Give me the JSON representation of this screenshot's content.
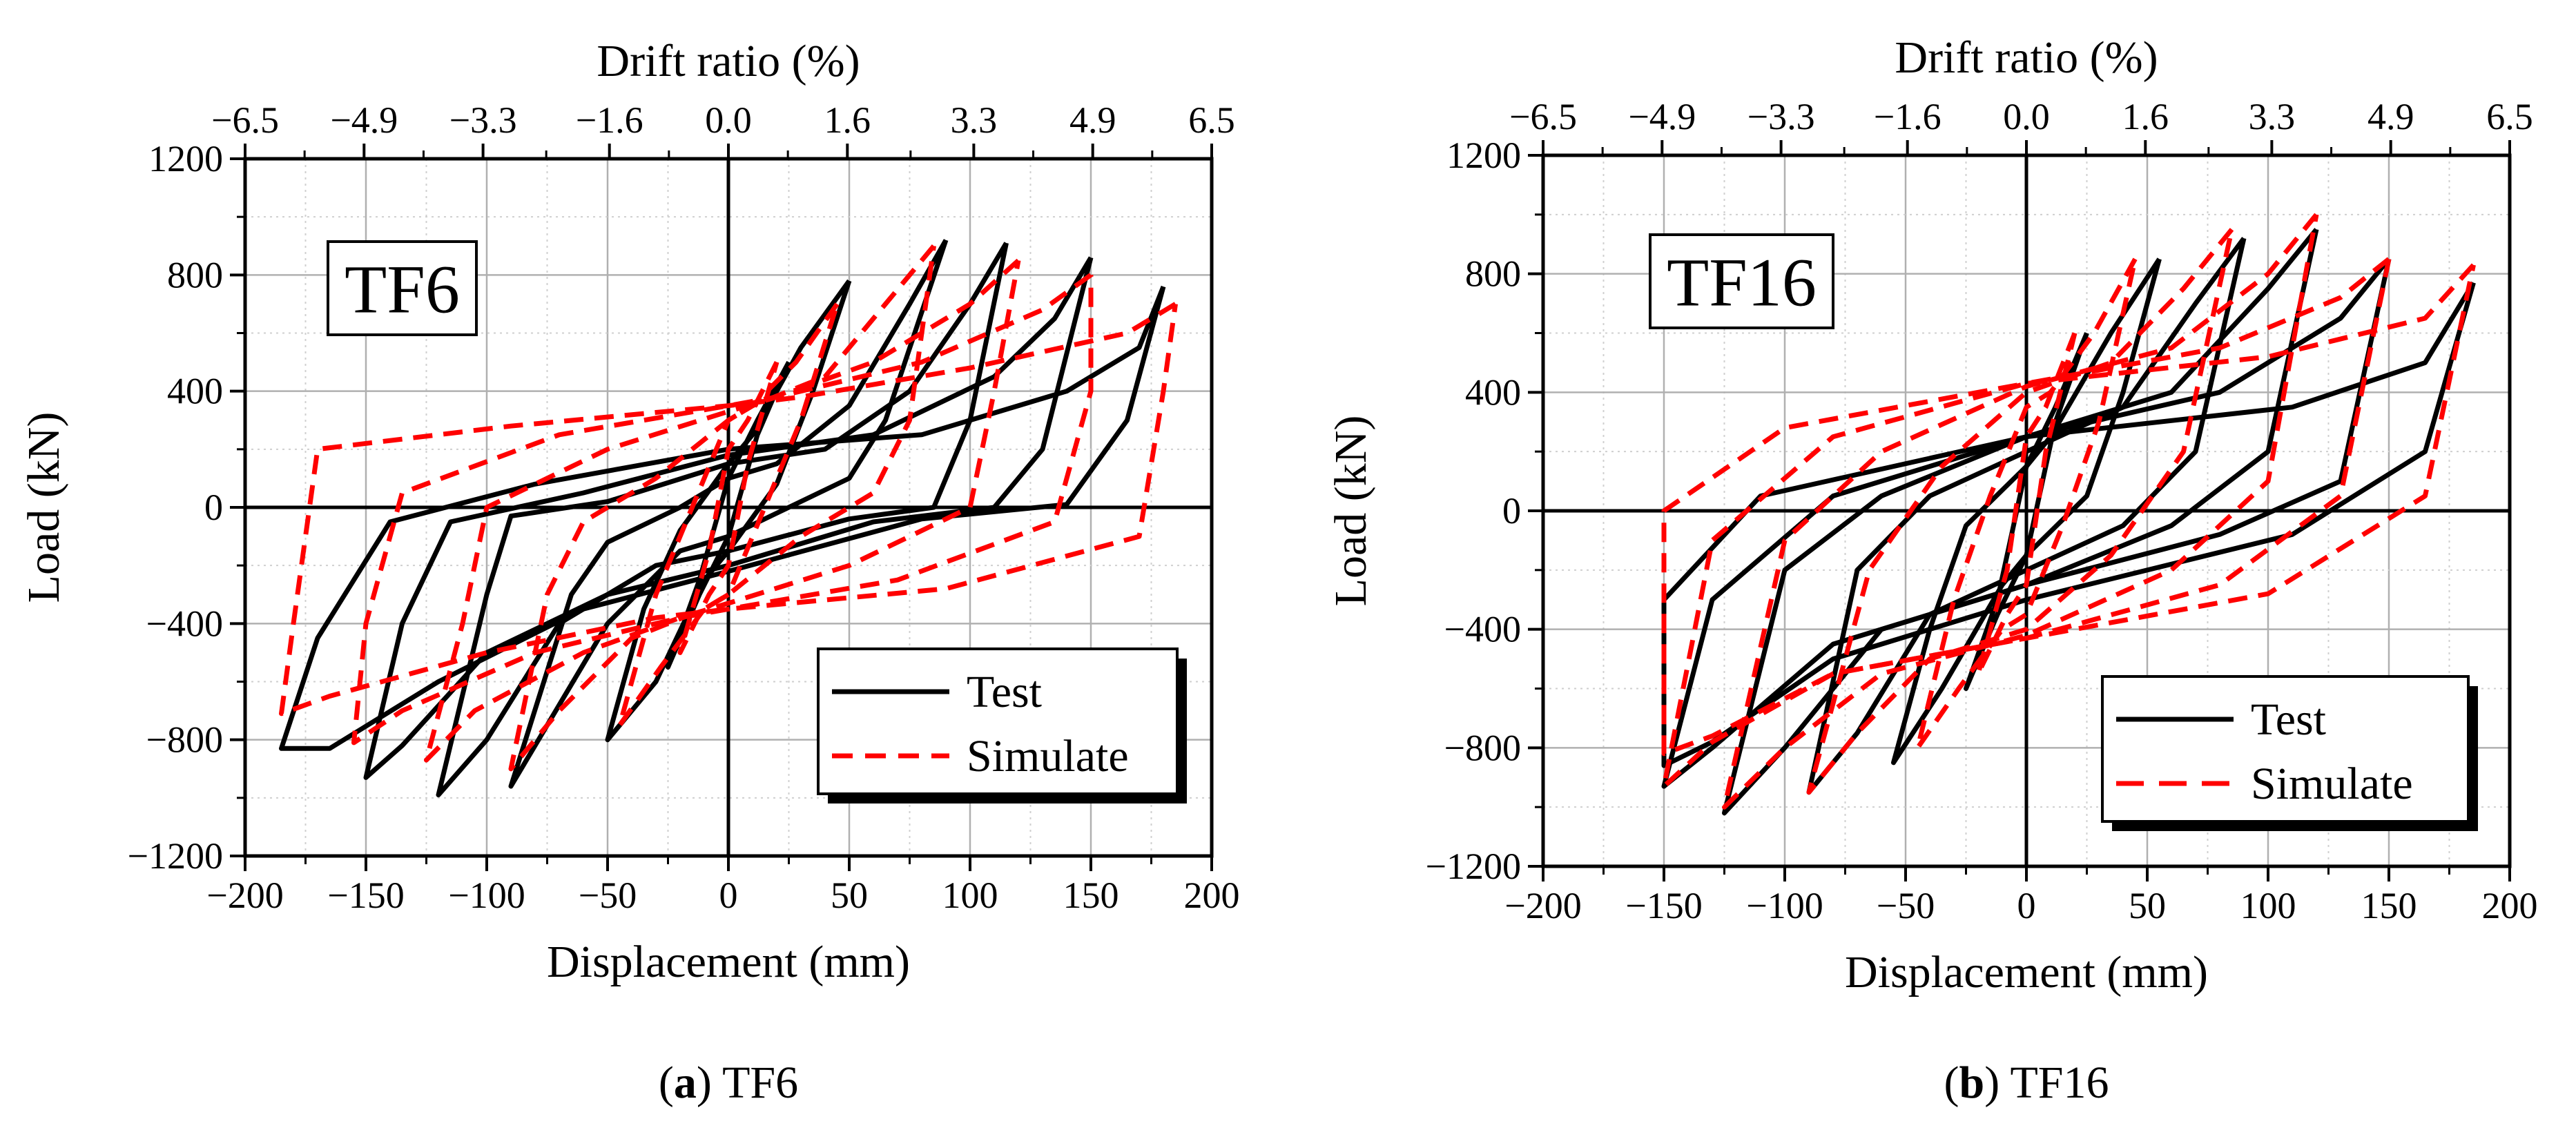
{
  "chart_data": [
    {
      "type": "line",
      "panel_letter": "a",
      "caption_text": " TF6",
      "specimen_label": "TF6",
      "xlabel": "Displacement (mm)",
      "ylabel": "Load (kN)",
      "top_xlabel": "Drift ratio (%)",
      "xlim": [
        -200,
        200
      ],
      "ylim": [
        -1200,
        1200
      ],
      "x_ticks": [
        -200,
        -150,
        -100,
        -50,
        0,
        50,
        100,
        150,
        200
      ],
      "x_tick_labels": [
        "−200",
        "−150",
        "−100",
        "−50",
        "0",
        "50",
        "100",
        "150",
        "200"
      ],
      "y_ticks": [
        -1200,
        -800,
        -400,
        0,
        400,
        800,
        1200
      ],
      "y_tick_labels": [
        "−1200",
        "−800",
        "−400",
        "0",
        "400",
        "800",
        "1200"
      ],
      "top_ticks": [
        -6.5,
        -4.9,
        -3.3,
        -1.6,
        0.0,
        1.6,
        3.3,
        4.9,
        6.5
      ],
      "top_tick_labels": [
        "−6.5",
        "−4.9",
        "−3.3",
        "−1.6",
        "0.0",
        "1.6",
        "3.3",
        "4.9",
        "6.5"
      ],
      "grid": true,
      "legend_position": "bottom-right",
      "series": [
        {
          "name": "Test",
          "color": "#000000",
          "dash": "solid",
          "cycles": [
            [
              25,
              500,
              12,
              300,
              0,
              100,
              -12,
              -250,
              -25,
              -550,
              -12,
              -300,
              0,
              -100,
              12,
              250,
              25,
              500
            ],
            [
              50,
              780,
              30,
              550,
              10,
              250,
              0,
              150,
              -20,
              -80,
              -35,
              -350,
              -50,
              -800,
              -30,
              -600,
              -10,
              -250,
              0,
              -150,
              20,
              80,
              35,
              400,
              50,
              780
            ],
            [
              90,
              920,
              75,
              700,
              50,
              350,
              20,
              150,
              0,
              100,
              -20,
              0,
              -50,
              -120,
              -65,
              -300,
              -90,
              -960,
              -75,
              -750,
              -50,
              -400,
              -20,
              -150,
              0,
              -100,
              20,
              -20,
              50,
              100,
              65,
              300,
              90,
              920
            ],
            [
              115,
              910,
              100,
              700,
              75,
              400,
              40,
              200,
              0,
              150,
              -50,
              20,
              -90,
              -30,
              -100,
              -300,
              -120,
              -990,
              -100,
              -800,
              -70,
              -400,
              -30,
              -200,
              0,
              -150,
              50,
              -40,
              85,
              0,
              100,
              300,
              115,
              910
            ],
            [
              150,
              860,
              135,
              650,
              110,
              450,
              60,
              250,
              0,
              180,
              -60,
              50,
              -115,
              -50,
              -135,
              -400,
              -150,
              -930,
              -135,
              -820,
              -100,
              -500,
              -50,
              -300,
              0,
              -200,
              60,
              -50,
              110,
              0,
              130,
              200,
              150,
              860
            ],
            [
              180,
              760,
              170,
              550,
              140,
              400,
              80,
              250,
              0,
              200,
              -80,
              80,
              -140,
              -50,
              -170,
              -450,
              -185,
              -830,
              -165,
              -830,
              -120,
              -600,
              -60,
              -350,
              0,
              -220,
              80,
              -40,
              140,
              10,
              165,
              300,
              180,
              760
            ]
          ]
        },
        {
          "name": "Simulate",
          "color": "#ff0000",
          "dash": "dashed",
          "cycles": [
            [
              20,
              500,
              8,
              300,
              0,
              200,
              -8,
              -150,
              -20,
              -500,
              -8,
              -300,
              0,
              -200,
              8,
              150,
              20,
              500
            ],
            [
              45,
              700,
              28,
              500,
              10,
              350,
              0,
              300,
              -15,
              0,
              -30,
              -300,
              -45,
              -750,
              -28,
              -550,
              -10,
              -350,
              0,
              -300,
              15,
              0,
              30,
              300,
              45,
              700
            ],
            [
              85,
              900,
              65,
              700,
              40,
              450,
              10,
              350,
              0,
              300,
              -30,
              100,
              -60,
              -50,
              -75,
              -300,
              -90,
              -900,
              -70,
              -700,
              -40,
              -450,
              -10,
              -350,
              0,
              -300,
              30,
              -100,
              60,
              50,
              75,
              300,
              85,
              900
            ],
            [
              120,
              850,
              100,
              700,
              60,
              500,
              20,
              380,
              0,
              330,
              -50,
              200,
              -100,
              0,
              -110,
              -400,
              -125,
              -870,
              -105,
              -700,
              -60,
              -500,
              -20,
              -380,
              0,
              -330,
              50,
              -200,
              100,
              0,
              110,
              400,
              120,
              850
            ],
            [
              150,
              800,
              130,
              680,
              80,
              500,
              20,
              380,
              0,
              350,
              -70,
              250,
              -135,
              50,
              -150,
              -400,
              -155,
              -810,
              -135,
              -700,
              -80,
              -500,
              -20,
              -380,
              0,
              -350,
              70,
              -250,
              135,
              -50,
              150,
              400,
              150,
              800
            ],
            [
              185,
              700,
              165,
              600,
              100,
              480,
              30,
              380,
              0,
              350,
              -90,
              280,
              -170,
              200,
              -180,
              -400,
              -185,
              -710,
              -165,
              -650,
              -100,
              -500,
              -30,
              -380,
              0,
              -350,
              90,
              -280,
              170,
              -100,
              180,
              400,
              185,
              700
            ]
          ]
        }
      ]
    },
    {
      "type": "line",
      "panel_letter": "b",
      "caption_text": " TF16",
      "specimen_label": "TF16",
      "xlabel": "Displacement (mm)",
      "ylabel": "Load (kN)",
      "top_xlabel": "Drift ratio (%)",
      "xlim": [
        -200,
        200
      ],
      "ylim": [
        -1200,
        1200
      ],
      "x_ticks": [
        -200,
        -150,
        -100,
        -50,
        0,
        50,
        100,
        150,
        200
      ],
      "x_tick_labels": [
        "−200",
        "−150",
        "−100",
        "−50",
        "0",
        "50",
        "100",
        "150",
        "200"
      ],
      "y_ticks": [
        -1200,
        -800,
        -400,
        0,
        400,
        800,
        1200
      ],
      "y_tick_labels": [
        "−1200",
        "−800",
        "−400",
        "0",
        "400",
        "800",
        "1200"
      ],
      "top_ticks": [
        -6.5,
        -4.9,
        -3.3,
        -1.6,
        0.0,
        1.6,
        3.3,
        4.9,
        6.5
      ],
      "top_tick_labels": [
        "−6.5",
        "−4.9",
        "−3.3",
        "−1.6",
        "0.0",
        "1.6",
        "3.3",
        "4.9",
        "6.5"
      ],
      "grid": true,
      "legend_position": "bottom-right",
      "series": [
        {
          "name": "Test",
          "color": "#000000",
          "dash": "solid",
          "cycles": [
            [
              25,
              600,
              12,
              350,
              0,
              150,
              -12,
              -300,
              -25,
              -600,
              -12,
              -350,
              0,
              -150,
              12,
              300,
              25,
              600
            ],
            [
              55,
              850,
              35,
              600,
              10,
              250,
              0,
              150,
              -25,
              -50,
              -40,
              -400,
              -55,
              -850,
              -35,
              -600,
              -10,
              -250,
              0,
              -150,
              25,
              50,
              40,
              400,
              55,
              850
            ],
            [
              90,
              920,
              70,
              700,
              40,
              350,
              0,
              200,
              -40,
              50,
              -70,
              -200,
              -90,
              -950,
              -70,
              -750,
              -40,
              -350,
              0,
              -200,
              40,
              -50,
              70,
              200,
              90,
              920
            ],
            [
              120,
              950,
              100,
              750,
              60,
              400,
              0,
              250,
              -60,
              50,
              -100,
              -200,
              -125,
              -1020,
              -100,
              -800,
              -60,
              -400,
              0,
              -250,
              60,
              -50,
              100,
              200,
              120,
              950
            ],
            [
              150,
              850,
              130,
              650,
              80,
              400,
              0,
              250,
              -80,
              50,
              -130,
              -300,
              -150,
              -930,
              -130,
              -800,
              -80,
              -450,
              0,
              -250,
              80,
              -80,
              130,
              100,
              150,
              850
            ],
            [
              185,
              770,
              165,
              500,
              110,
              350,
              0,
              250,
              -110,
              50,
              -150,
              -300,
              -150,
              -860,
              -130,
              -780,
              -80,
              -500,
              0,
              -300,
              110,
              -80,
              165,
              200,
              185,
              770
            ]
          ]
        },
        {
          "name": "Simulate",
          "color": "#ff0000",
          "dash": "dashed",
          "cycles": [
            [
              20,
              600,
              8,
              350,
              0,
              250,
              -8,
              -200,
              -20,
              -550,
              -8,
              -350,
              0,
              -250,
              8,
              200,
              20,
              600
            ],
            [
              45,
              850,
              28,
              600,
              10,
              400,
              0,
              350,
              -15,
              50,
              -30,
              -300,
              -45,
              -800,
              -28,
              -600,
              -10,
              -400,
              0,
              -350,
              15,
              -50,
              30,
              300,
              45,
              850
            ],
            [
              85,
              950,
              65,
              750,
              35,
              500,
              0,
              400,
              -35,
              150,
              -65,
              -200,
              -90,
              -950,
              -70,
              -750,
              -40,
              -500,
              0,
              -400,
              35,
              -150,
              65,
              200,
              85,
              950
            ],
            [
              120,
              1000,
              100,
              800,
              60,
              550,
              0,
              420,
              -60,
              200,
              -100,
              -100,
              -125,
              -1000,
              -100,
              -800,
              -60,
              -550,
              0,
              -420,
              60,
              -200,
              100,
              100,
              120,
              1000
            ],
            [
              150,
              850,
              130,
              720,
              80,
              550,
              0,
              430,
              -80,
              250,
              -130,
              -100,
              -150,
              -930,
              -130,
              -780,
              -80,
              -550,
              0,
              -430,
              80,
              -250,
              130,
              50,
              150,
              850
            ],
            [
              185,
              830,
              165,
              650,
              100,
              520,
              0,
              430,
              -100,
              280,
              -150,
              0,
              -150,
              -820,
              -130,
              -760,
              -80,
              -550,
              0,
              -430,
              100,
              -280,
              165,
              50,
              185,
              830
            ]
          ]
        }
      ]
    }
  ]
}
